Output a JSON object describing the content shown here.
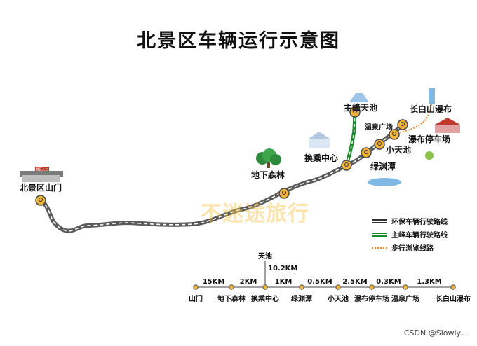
{
  "title": "北景区车辆运行示意图",
  "watermark": "不迷途旅行",
  "credit": "CSDN @Slowly...",
  "map_labels": {
    "shanmen": "北景区山门",
    "dixiasenlin": "地下森林",
    "huanchengzhongxin": "换乘中心",
    "zhufengtianchi": "主峰天池",
    "wenquanguangchang": "温泉广场",
    "changbaishanpubu": "长白山瀑布",
    "pubutingchechang": "瀑布停车场",
    "xiaotianchi": "小天池",
    "lvyuantan": "绿渊潭"
  },
  "gate_sign": "景区入口",
  "legend": [
    {
      "key": "eco",
      "label": "环保车辆行驶路线",
      "color": "#333333"
    },
    {
      "key": "main",
      "label": "主峰车辆行驶路线",
      "color": "#1a8a2a"
    },
    {
      "key": "walk",
      "label": "步行浏览线路",
      "color": "#f07c1a"
    }
  ],
  "distance_bar": {
    "stops": [
      "山门",
      "地下森林",
      "换乘中心",
      "绿渊潭",
      "小天池",
      "瀑布停车场",
      "温泉广场",
      "长白山瀑布"
    ],
    "segments": [
      "15KM",
      "2KM",
      "1KM",
      "0.5KM",
      "2.5KM",
      "0.3KM",
      "1.3KM"
    ],
    "branch_stop": "天池",
    "branch_distance": "10.2KM"
  },
  "colors": {
    "road": "#5a5a5a",
    "road_dash": "#ffffff",
    "main_road": "#1a8a2a",
    "pin": "#f2b53a",
    "pin_ring": "#4a4a4a",
    "walk": "#f07c1a"
  }
}
